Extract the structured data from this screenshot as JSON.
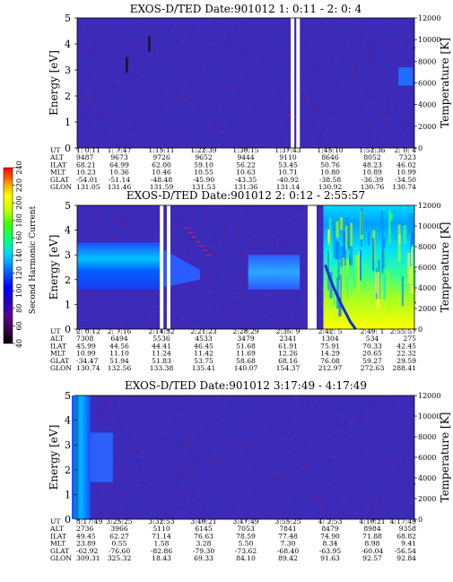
{
  "panels": [
    {
      "title": "EXOS-D/TED   Date:901012  1: 0:11 - 2: 0: 4",
      "ylabel": "Energy [eV]",
      "y2label": "Temperature [K]",
      "yticks": [
        "0",
        "1",
        "2",
        "3",
        "4",
        "5"
      ],
      "y2ticks": [
        "0",
        "2000",
        "4000",
        "6000",
        "8000",
        "10000",
        "12000"
      ],
      "ephemeris": {
        "UT": [
          "1: 0:11",
          "1: 7:47",
          "1:15:11",
          "1:22:39",
          "1:30:15",
          "1:37:43",
          "1:45:10",
          "1:52:36",
          "2: 0: 4"
        ],
        "ALT": [
          "9487",
          "9673",
          "9726",
          "9652",
          "9444",
          "9110",
          "8646",
          "8052",
          "7323"
        ],
        "ILAT": [
          "68.21",
          "64.99",
          "62.00",
          "59.10",
          "56.22",
          "53.45",
          "50.76",
          "48.23",
          "46.02"
        ],
        "MLT": [
          "10.23",
          "10.36",
          "10.46",
          "10.55",
          "10.63",
          "10.71",
          "10.80",
          "10.89",
          "10.99"
        ],
        "GLAT": [
          "-54.01",
          "-51.14",
          "-48.48",
          "-45.90",
          "-43.35",
          "-40.92",
          "-38.58",
          "-36.39",
          "-34.50"
        ],
        "GLON": [
          "131.05",
          "131.46",
          "131.59",
          "131.53",
          "131.36",
          "131.14",
          "130.92",
          "130.76",
          "130.74"
        ]
      }
    },
    {
      "title": "EXOS-D/TED   Date:901012  2: 0:12 - 2:55:57",
      "ylabel": "Energy [eV]",
      "y2label": "Temperature [K]",
      "yticks": [
        "0",
        "1",
        "2",
        "3",
        "4",
        "5"
      ],
      "y2ticks": [
        "0",
        "2000",
        "4000",
        "6000",
        "8000",
        "10000",
        "12000"
      ],
      "ephemeris": {
        "UT": [
          "2: 0:12",
          "2: 7:16",
          "2:14:32",
          "2:21:23",
          "2:28:29",
          "2:35: 9",
          "2:42: 5",
          "2:49: 1",
          "2:55:57"
        ],
        "ALT": [
          "7308",
          "6494",
          "5536",
          "4533",
          "3479",
          "2341",
          "1304",
          "534",
          "275"
        ],
        "ILAT": [
          "45.99",
          "44.56",
          "44.41",
          "46.45",
          "51.68",
          "61.91",
          "75.91",
          "70.33",
          "42.45"
        ],
        "MLT": [
          "10.99",
          "11.10",
          "11.24",
          "11.42",
          "11.69",
          "12.26",
          "14.29",
          "20.65",
          "22.32"
        ],
        "GLAT": [
          "-34.47",
          "51.94",
          "51.83",
          "53.75",
          "58.68",
          "68.16",
          "76.08",
          "59.27",
          "29.59"
        ],
        "GLON": [
          "130.74",
          "132.56",
          "133.38",
          "135.41",
          "140.07",
          "154.37",
          "212.97",
          "272.63",
          "288.41"
        ]
      }
    },
    {
      "title": "EXOS-D/TED   Date:901012  3:17:49 - 4:17:49",
      "ylabel": "Energy [eV]",
      "y2label": "Temperature [K]",
      "yticks": [
        "0",
        "1",
        "2",
        "3",
        "4",
        "5"
      ],
      "y2ticks": [
        "0",
        "2000",
        "4000",
        "6000",
        "8000",
        "10000",
        "12000"
      ],
      "ephemeris": {
        "UT": [
          "3:17:49",
          "3:25:25",
          "3:32:53",
          "3:40:21",
          "3:47:49",
          "3:55:25",
          "4: 2:53",
          "4:10:21",
          "4:17:49"
        ],
        "ALT": [
          "2736",
          "3966",
          "5110",
          "6145",
          "7053",
          "7841",
          "8479",
          "8984",
          "9358"
        ],
        "ILAT": [
          "49.45",
          "62.27",
          "71.14",
          "76.63",
          "78.59",
          "77.48",
          "74.90",
          "71.88",
          "68.82"
        ],
        "MLT": [
          "23.89",
          "0.55",
          "1.58",
          "3.28",
          "5.50",
          "7.30",
          "8.34",
          "8.98",
          "9.41"
        ],
        "GLAT": [
          "-62.92",
          "-76.60",
          "-82.86",
          "-79.30",
          "-73.62",
          "-68.40",
          "-63.95",
          "-60.04",
          "-56.54"
        ],
        "GLON": [
          "309.31",
          "325.32",
          "18.43",
          "69.33",
          "84.10",
          "89.42",
          "91.63",
          "92.57",
          "92.84"
        ]
      }
    }
  ],
  "colorbar": {
    "label": "Second Harmonic Current",
    "ticks": [
      "40",
      "60",
      "80",
      "100",
      "120",
      "140",
      "160",
      "180",
      "200",
      "220",
      "240"
    ],
    "colors": [
      "#000000",
      "#3a004a",
      "#5a0080",
      "#2000b0",
      "#0000ff",
      "#0050ff",
      "#00a0ff",
      "#00e0e0",
      "#00ff80",
      "#40ff00",
      "#c0ff00",
      "#ffff00",
      "#ffc000",
      "#ff6000",
      "#ff0000"
    ]
  },
  "chart_data": [
    {
      "type": "heatmap",
      "title": "EXOS-D/TED   Date:901012  1: 0:11 - 2: 0: 4",
      "xlabel": "UT",
      "ylabel": "Energy [eV]",
      "y2label": "Temperature [K]",
      "ylim": [
        0,
        5
      ],
      "y2lim": [
        0,
        12000
      ],
      "x": [
        "1: 0:11",
        "1: 7:47",
        "1:15:11",
        "1:22:39",
        "1:30:15",
        "1:37:43",
        "1:45:10",
        "1:52:36",
        "2: 0: 4"
      ],
      "background_value": 90,
      "gaps_ut": [
        "1:38:30",
        "1:39:10"
      ],
      "features": [
        {
          "ut": "1: 9:00",
          "energy": [
            2.9,
            3.5
          ],
          "value": 40
        },
        {
          "ut": "1:13:00",
          "energy": [
            3.7,
            4.3
          ],
          "value": 40
        },
        {
          "ut": "1:58:30",
          "energy": [
            2.4,
            3.1
          ],
          "value": 130
        }
      ]
    },
    {
      "type": "heatmap",
      "title": "EXOS-D/TED   Date:901012  2: 0:12 - 2:55:57",
      "xlabel": "UT",
      "ylabel": "Energy [eV]",
      "y2label": "Temperature [K]",
      "ylim": [
        0,
        5
      ],
      "y2lim": [
        0,
        12000
      ],
      "x": [
        "2: 0:12",
        "2: 7:16",
        "2:14:32",
        "2:21:23",
        "2:28:29",
        "2:35: 9",
        "2:42: 5",
        "2:49: 1",
        "2:55:57"
      ],
      "background_value": 90,
      "gaps_ut": [
        "2:14:10",
        "2:15:10",
        "2:38:00"
      ],
      "features": [
        {
          "ut_range": [
            "2: 0:12",
            "2:14:32"
          ],
          "energy": [
            1.6,
            3.5
          ],
          "value": 130,
          "note_color": "cyan-blue band"
        },
        {
          "ut_range": [
            "2:28:29",
            "2:37:00"
          ],
          "energy": [
            1.6,
            3.0
          ],
          "value": 120
        },
        {
          "ut_range": [
            "2:42: 5",
            "2:55:57"
          ],
          "energy": [
            0,
            5
          ],
          "value": 160
        }
      ]
    },
    {
      "type": "heatmap",
      "title": "EXOS-D/TED   Date:901012  3:17:49 - 4:17:49",
      "xlabel": "UT",
      "ylabel": "Energy [eV]",
      "y2label": "Temperature [K]",
      "ylim": [
        0,
        5
      ],
      "y2lim": [
        0,
        12000
      ],
      "x": [
        "3:17:49",
        "3:25:25",
        "3:32:53",
        "3:40:21",
        "3:47:49",
        "3:55:25",
        "4: 2:53",
        "4:10:21",
        "4:17:49"
      ],
      "background_value": 90,
      "features": [
        {
          "ut_range": [
            "3:17:49",
            "3:20:30"
          ],
          "energy": [
            0,
            5
          ],
          "value": 120
        },
        {
          "ut_range": [
            "3:20:30",
            "3:24:30"
          ],
          "energy": [
            1.5,
            3.5
          ],
          "value": 115
        }
      ]
    }
  ],
  "colors": {
    "background": "#3c2ab8",
    "noise_red": "#7a1c6a",
    "noise_purple": "#5a2ac8",
    "gap": "#ffffff"
  }
}
